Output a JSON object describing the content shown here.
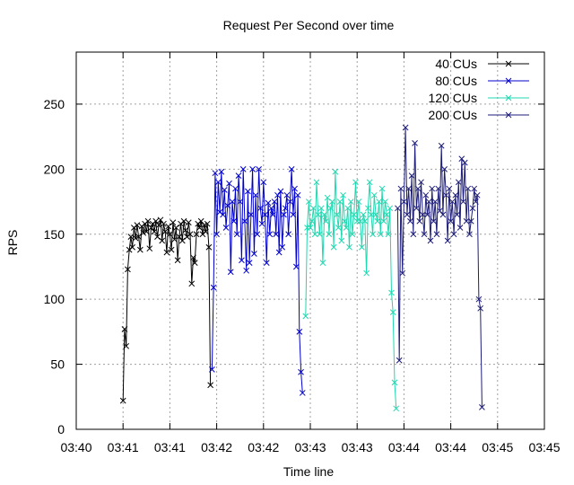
{
  "chart_data": {
    "type": "line",
    "title": "Request Per Second over time",
    "xlabel": "Time line",
    "ylabel": "RPS",
    "ylim": [
      0,
      290
    ],
    "yticks": [
      0,
      50,
      100,
      150,
      200,
      250
    ],
    "xticks": [
      "03:40",
      "03:41",
      "03:41",
      "03:42",
      "03:42",
      "03:43",
      "03:43",
      "03:44",
      "03:44",
      "03:45",
      "03:45"
    ],
    "x_axis_unit": "seconds since 03:40:00",
    "xlim": [
      0,
      300
    ],
    "grid": true,
    "legend_position": "top-right",
    "series": [
      {
        "name": "40 CUs",
        "color": "#000000",
        "points": [
          [
            30,
            22
          ],
          [
            31,
            77
          ],
          [
            32,
            64
          ],
          [
            33,
            123
          ],
          [
            34,
            138
          ],
          [
            35,
            148
          ],
          [
            36,
            140
          ],
          [
            37,
            155
          ],
          [
            38,
            147
          ],
          [
            39,
            157
          ],
          [
            40,
            148
          ],
          [
            41,
            138
          ],
          [
            42,
            156
          ],
          [
            43,
            151
          ],
          [
            44,
            158
          ],
          [
            45,
            152
          ],
          [
            46,
            160
          ],
          [
            47,
            139
          ],
          [
            48,
            155
          ],
          [
            49,
            158
          ],
          [
            50,
            152
          ],
          [
            51,
            160
          ],
          [
            52,
            148
          ],
          [
            53,
            157
          ],
          [
            54,
            161
          ],
          [
            55,
            145
          ],
          [
            56,
            158
          ],
          [
            57,
            152
          ],
          [
            58,
            136
          ],
          [
            59,
            156
          ],
          [
            60,
            150
          ],
          [
            61,
            138
          ],
          [
            62,
            159
          ],
          [
            63,
            146
          ],
          [
            64,
            155
          ],
          [
            65,
            130
          ],
          [
            66,
            148
          ],
          [
            67,
            158
          ],
          [
            68,
            145
          ],
          [
            69,
            160
          ],
          [
            70,
            153
          ],
          [
            71,
            148
          ],
          [
            72,
            159
          ],
          [
            73,
            150
          ],
          [
            74,
            112
          ],
          [
            75,
            132
          ],
          [
            76,
            128
          ],
          [
            77,
            150
          ],
          [
            78,
            158
          ],
          [
            79,
            155
          ],
          [
            80,
            160
          ],
          [
            81,
            150
          ],
          [
            82,
            157
          ],
          [
            83,
            152
          ],
          [
            84,
            158
          ],
          [
            85,
            140
          ],
          [
            86,
            34
          ]
        ]
      },
      {
        "name": "80 CUs",
        "color": "#0000cd",
        "points": [
          [
            87,
            46
          ],
          [
            88,
            109
          ],
          [
            89,
            197
          ],
          [
            90,
            150
          ],
          [
            91,
            190
          ],
          [
            92,
            167
          ],
          [
            93,
            198
          ],
          [
            94,
            165
          ],
          [
            95,
            184
          ],
          [
            96,
            155
          ],
          [
            97,
            172
          ],
          [
            98,
            189
          ],
          [
            99,
            121
          ],
          [
            100,
            175
          ],
          [
            101,
            160
          ],
          [
            102,
            185
          ],
          [
            103,
            150
          ],
          [
            104,
            195
          ],
          [
            105,
            175
          ],
          [
            106,
            130
          ],
          [
            107,
            200
          ],
          [
            108,
            160
          ],
          [
            109,
            122
          ],
          [
            110,
            183
          ],
          [
            111,
            128
          ],
          [
            112,
            165
          ],
          [
            113,
            200
          ],
          [
            114,
            135
          ],
          [
            115,
            180
          ],
          [
            116,
            150
          ],
          [
            117,
            200
          ],
          [
            118,
            170
          ],
          [
            119,
            158
          ],
          [
            120,
            190
          ],
          [
            121,
            165
          ],
          [
            122,
            128
          ],
          [
            123,
            174
          ],
          [
            124,
            150
          ],
          [
            125,
            170
          ],
          [
            126,
            165
          ],
          [
            127,
            175
          ],
          [
            128,
            150
          ],
          [
            129,
            180
          ],
          [
            130,
            136
          ],
          [
            131,
            183
          ],
          [
            132,
            140
          ],
          [
            133,
            165
          ],
          [
            134,
            170
          ],
          [
            135,
            180
          ],
          [
            136,
            150
          ],
          [
            137,
            175
          ],
          [
            138,
            200
          ],
          [
            139,
            165
          ],
          [
            140,
            185
          ],
          [
            141,
            125
          ],
          [
            142,
            180
          ],
          [
            143,
            75
          ],
          [
            144,
            44
          ],
          [
            145,
            28
          ]
        ]
      },
      {
        "name": "120 CUs",
        "color": "#20d8b0",
        "points": [
          [
            147,
            87
          ],
          [
            148,
            155
          ],
          [
            149,
            175
          ],
          [
            150,
            155
          ],
          [
            151,
            160
          ],
          [
            152,
            170
          ],
          [
            153,
            150
          ],
          [
            154,
            190
          ],
          [
            155,
            165
          ],
          [
            156,
            150
          ],
          [
            157,
            170
          ],
          [
            158,
            128
          ],
          [
            159,
            165
          ],
          [
            160,
            160
          ],
          [
            161,
            178
          ],
          [
            162,
            150
          ],
          [
            163,
            170
          ],
          [
            164,
            175
          ],
          [
            165,
            140
          ],
          [
            166,
            198
          ],
          [
            167,
            165
          ],
          [
            168,
            155
          ],
          [
            169,
            175
          ],
          [
            170,
            145
          ],
          [
            171,
            180
          ],
          [
            172,
            160
          ],
          [
            173,
            155
          ],
          [
            174,
            170
          ],
          [
            175,
            140
          ],
          [
            176,
            175
          ],
          [
            177,
            150
          ],
          [
            178,
            165
          ],
          [
            179,
            190
          ],
          [
            180,
            160
          ],
          [
            181,
            175
          ],
          [
            182,
            160
          ],
          [
            183,
            140
          ],
          [
            184,
            165
          ],
          [
            185,
            160
          ],
          [
            186,
            120
          ],
          [
            187,
            170
          ],
          [
            188,
            190
          ],
          [
            189,
            165
          ],
          [
            190,
            150
          ],
          [
            191,
            180
          ],
          [
            192,
            165
          ],
          [
            193,
            160
          ],
          [
            194,
            175
          ],
          [
            195,
            150
          ],
          [
            196,
            185
          ],
          [
            197,
            160
          ],
          [
            198,
            175
          ],
          [
            199,
            165
          ],
          [
            200,
            150
          ],
          [
            201,
            170
          ],
          [
            202,
            105
          ],
          [
            203,
            90
          ],
          [
            204,
            36
          ],
          [
            205,
            16
          ]
        ]
      },
      {
        "name": "200 CUs",
        "color": "#1c1c78",
        "points": [
          [
            206,
            170
          ],
          [
            207,
            53
          ],
          [
            208,
            185
          ],
          [
            209,
            120
          ],
          [
            210,
            175
          ],
          [
            211,
            232
          ],
          [
            212,
            165
          ],
          [
            213,
            185
          ],
          [
            214,
            160
          ],
          [
            215,
            195
          ],
          [
            216,
            150
          ],
          [
            217,
            220
          ],
          [
            218,
            170
          ],
          [
            219,
            185
          ],
          [
            220,
            160
          ],
          [
            221,
            190
          ],
          [
            222,
            165
          ],
          [
            223,
            150
          ],
          [
            224,
            180
          ],
          [
            225,
            165
          ],
          [
            226,
            175
          ],
          [
            227,
            145
          ],
          [
            228,
            185
          ],
          [
            229,
            160
          ],
          [
            230,
            175
          ],
          [
            231,
            150
          ],
          [
            232,
            185
          ],
          [
            233,
            168
          ],
          [
            234,
            218
          ],
          [
            235,
            165
          ],
          [
            236,
            200
          ],
          [
            237,
            180
          ],
          [
            238,
            145
          ],
          [
            239,
            185
          ],
          [
            240,
            160
          ],
          [
            241,
            175
          ],
          [
            242,
            150
          ],
          [
            243,
            180
          ],
          [
            244,
            165
          ],
          [
            245,
            190
          ],
          [
            246,
            155
          ],
          [
            247,
            208
          ],
          [
            248,
            175
          ],
          [
            249,
            205
          ],
          [
            250,
            160
          ],
          [
            251,
            185
          ],
          [
            252,
            150
          ],
          [
            253,
            160
          ],
          [
            254,
            170
          ],
          [
            255,
            185
          ],
          [
            256,
            175
          ],
          [
            257,
            180
          ],
          [
            258,
            100
          ],
          [
            259,
            93
          ],
          [
            260,
            17
          ]
        ]
      }
    ]
  }
}
